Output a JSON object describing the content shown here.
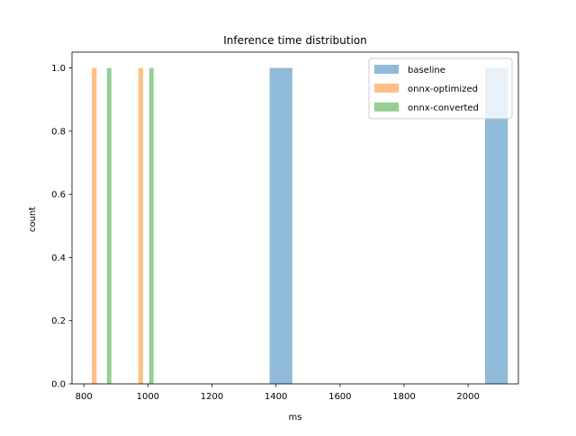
{
  "chart_data": {
    "type": "bar",
    "title": "Inference time distribution",
    "xlabel": "ms",
    "ylabel": "count",
    "xlim": [
      763,
      2157
    ],
    "ylim": [
      0,
      1.05
    ],
    "xticks": [
      800,
      1000,
      1200,
      1400,
      1600,
      1800,
      2000
    ],
    "yticks": [
      0.0,
      0.2,
      0.4,
      0.6,
      0.8,
      1.0
    ],
    "xtick_labels": [
      "800",
      "1000",
      "1200",
      "1400",
      "1600",
      "1800",
      "2000"
    ],
    "ytick_labels": [
      "0.0",
      "0.2",
      "0.4",
      "0.6",
      "0.8",
      "1.0"
    ],
    "grid": false,
    "legend_position": "top-right",
    "series": [
      {
        "name": "baseline",
        "color": "#1f77b4",
        "alpha": 0.5,
        "bins": [
          {
            "x0": 1380,
            "x1": 1451,
            "count": 1
          },
          {
            "x0": 2053,
            "x1": 2124,
            "count": 1
          }
        ]
      },
      {
        "name": "onnx-optimized",
        "color": "#ff7f0e",
        "alpha": 0.5,
        "bins": [
          {
            "x0": 825,
            "x1": 840,
            "count": 1
          },
          {
            "x0": 970,
            "x1": 985,
            "count": 1
          }
        ]
      },
      {
        "name": "onnx-converted",
        "color": "#2ca02c",
        "alpha": 0.5,
        "bins": [
          {
            "x0": 872,
            "x1": 886,
            "count": 1
          },
          {
            "x0": 1004,
            "x1": 1018,
            "count": 1
          }
        ]
      }
    ]
  }
}
